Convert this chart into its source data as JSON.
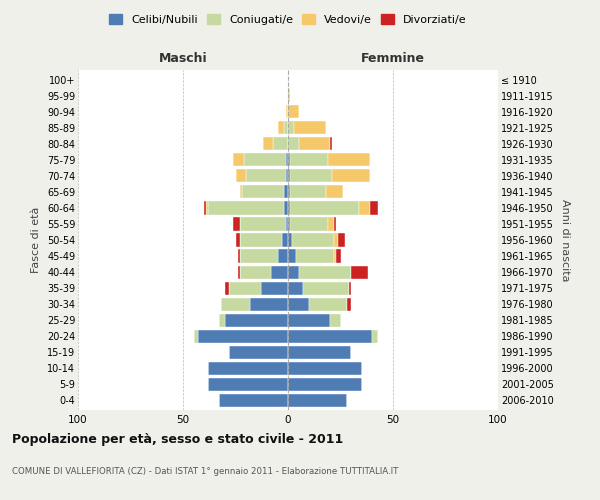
{
  "age_groups": [
    "0-4",
    "5-9",
    "10-14",
    "15-19",
    "20-24",
    "25-29",
    "30-34",
    "35-39",
    "40-44",
    "45-49",
    "50-54",
    "55-59",
    "60-64",
    "65-69",
    "70-74",
    "75-79",
    "80-84",
    "85-89",
    "90-94",
    "95-99",
    "100+"
  ],
  "birth_years": [
    "2006-2010",
    "2001-2005",
    "1996-2000",
    "1991-1995",
    "1986-1990",
    "1981-1985",
    "1976-1980",
    "1971-1975",
    "1966-1970",
    "1961-1965",
    "1956-1960",
    "1951-1955",
    "1946-1950",
    "1941-1945",
    "1936-1940",
    "1931-1935",
    "1926-1930",
    "1921-1925",
    "1916-1920",
    "1911-1915",
    "≤ 1910"
  ],
  "colors": {
    "celibi": "#4e7cb3",
    "coniugati": "#c5d9a0",
    "vedovi": "#f5c96a",
    "divorziati": "#cc2222"
  },
  "maschi": {
    "celibi": [
      33,
      38,
      38,
      28,
      43,
      30,
      18,
      13,
      8,
      5,
      3,
      1,
      2,
      2,
      1,
      1,
      0,
      0,
      0,
      0,
      0
    ],
    "coniugati": [
      0,
      0,
      0,
      0,
      2,
      3,
      14,
      15,
      15,
      18,
      20,
      22,
      36,
      20,
      19,
      20,
      7,
      2,
      0,
      0,
      0
    ],
    "vedovi": [
      0,
      0,
      0,
      0,
      0,
      0,
      0,
      0,
      0,
      0,
      0,
      0,
      1,
      1,
      5,
      5,
      5,
      3,
      1,
      0,
      0
    ],
    "divorziati": [
      0,
      0,
      0,
      0,
      0,
      0,
      0,
      2,
      1,
      1,
      2,
      3,
      1,
      0,
      0,
      0,
      0,
      0,
      0,
      0,
      0
    ]
  },
  "femmine": {
    "celibi": [
      28,
      35,
      35,
      30,
      40,
      20,
      10,
      7,
      5,
      4,
      2,
      1,
      1,
      1,
      1,
      1,
      0,
      0,
      0,
      0,
      0
    ],
    "coniugati": [
      0,
      0,
      0,
      0,
      3,
      5,
      18,
      22,
      25,
      18,
      20,
      18,
      33,
      17,
      20,
      18,
      5,
      3,
      0,
      0,
      0
    ],
    "vedovi": [
      0,
      0,
      0,
      0,
      0,
      0,
      0,
      0,
      0,
      1,
      2,
      3,
      5,
      8,
      18,
      20,
      15,
      15,
      5,
      1,
      0
    ],
    "divorziati": [
      0,
      0,
      0,
      0,
      0,
      0,
      2,
      1,
      8,
      2,
      3,
      1,
      4,
      0,
      0,
      0,
      1,
      0,
      0,
      0,
      0
    ]
  },
  "title": "Popolazione per età, sesso e stato civile - 2011",
  "subtitle": "COMUNE DI VALLEFIORITA (CZ) - Dati ISTAT 1° gennaio 2011 - Elaborazione TUTTITALIA.IT",
  "xlabel_left": "Maschi",
  "xlabel_right": "Femmine",
  "ylabel_left": "Fasce di età",
  "ylabel_right": "Anni di nascita",
  "legend_labels": [
    "Celibi/Nubili",
    "Coniugati/e",
    "Vedovi/e",
    "Divorziati/e"
  ],
  "xlim": 100,
  "background_color": "#f0f0eb",
  "bar_background": "#ffffff"
}
